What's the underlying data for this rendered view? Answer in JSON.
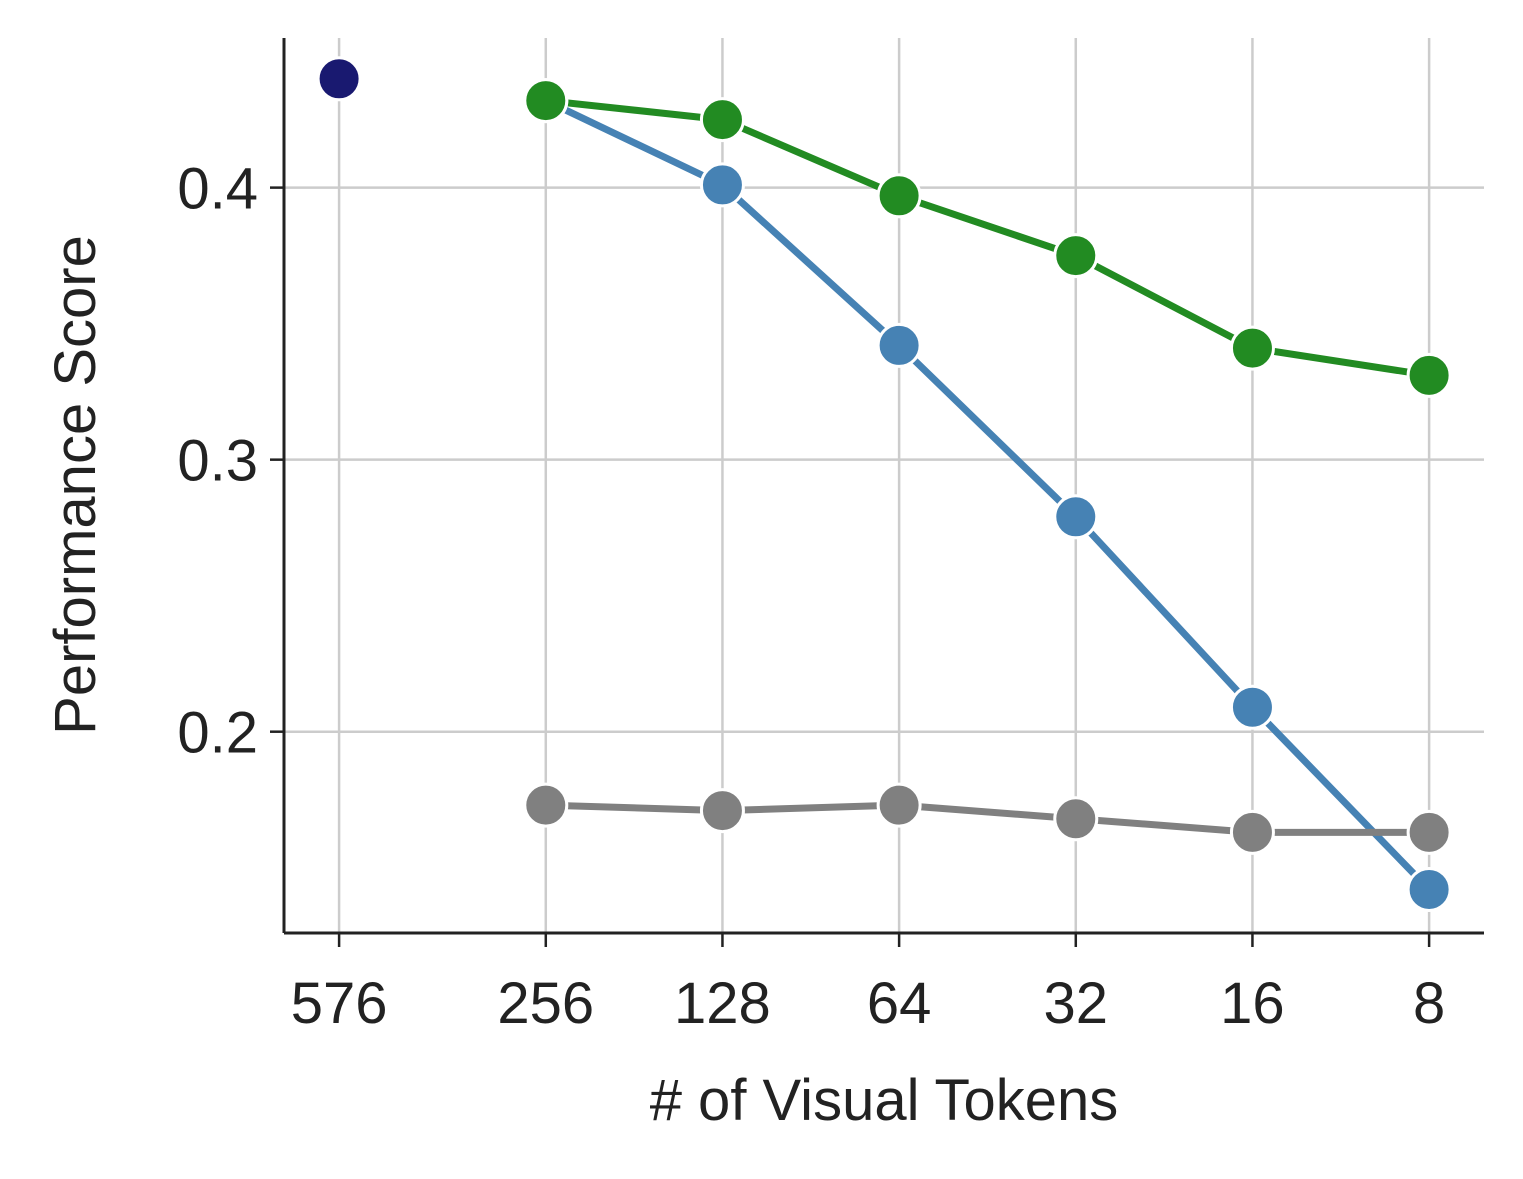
{
  "chart_data": {
    "type": "line",
    "xlabel": "# of Visual Tokens",
    "ylabel": "Performance Score",
    "x": [
      576,
      256,
      128,
      64,
      32,
      16,
      8
    ],
    "xscale": "log",
    "xlim": [
      715,
      6.45
    ],
    "xticks": [
      576,
      256,
      128,
      64,
      32,
      16,
      8
    ],
    "ylim": [
      0.126,
      0.455
    ],
    "yticks": [
      {
        "value": 0.2,
        "label": "0.2"
      },
      {
        "value": 0.3,
        "label": "0.3"
      },
      {
        "value": 0.4,
        "label": "0.4"
      }
    ],
    "grid": true,
    "series": [
      {
        "color": "#191970",
        "values": [
          0.44,
          null,
          null,
          null,
          null,
          null,
          null
        ]
      },
      {
        "color": "#4682b4",
        "values": [
          null,
          0.432,
          0.401,
          0.342,
          0.279,
          0.209,
          0.142
        ]
      },
      {
        "color": "#228b22",
        "values": [
          null,
          0.432,
          0.425,
          0.397,
          0.375,
          0.341,
          0.331
        ]
      },
      {
        "color": "#808080",
        "values": [
          null,
          0.173,
          0.171,
          0.173,
          0.168,
          0.163,
          0.163
        ]
      }
    ]
  }
}
